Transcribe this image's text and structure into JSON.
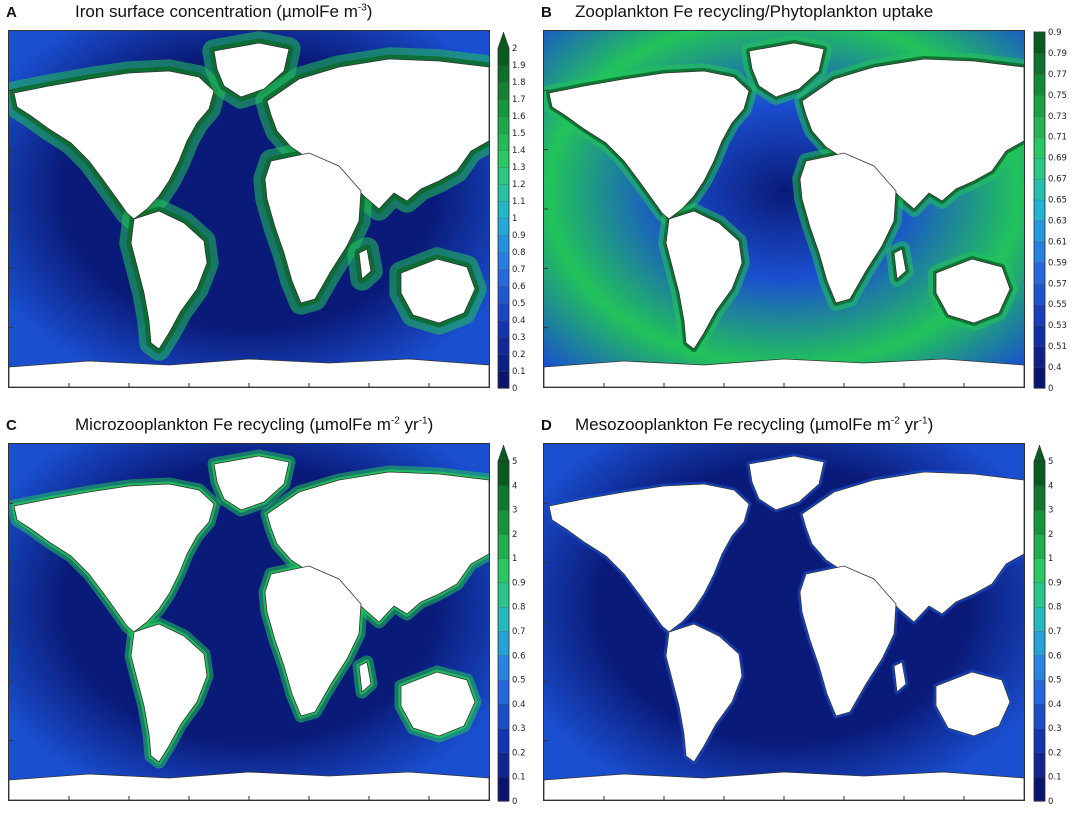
{
  "panels": [
    {
      "letter": "A",
      "title_parts": [
        "Iron surface concentration (µmolFe m",
        "-3",
        ")",
        "",
        ""
      ],
      "colorbar_ticks": [
        "0",
        "0.1",
        "0.2",
        "0.3",
        "0.4",
        "0.5",
        "0.6",
        "0.7",
        "0.8",
        "0.9",
        "1",
        "1.1",
        "1.2",
        "1.3",
        "1.4",
        "1.5",
        "1.6",
        "1.7",
        "1.8",
        "1.9",
        "2"
      ],
      "colorbar_arrow": true
    },
    {
      "letter": "B",
      "title_parts": [
        "Zooplankton Fe recycling/Phytoplankton uptake",
        "",
        "",
        "",
        ""
      ],
      "colorbar_ticks": [
        "0",
        "0.4",
        "0.51",
        "0.53",
        "0.55",
        "0.57",
        "0.59",
        "0.61",
        "0.63",
        "0.65",
        "0.67",
        "0.69",
        "0.71",
        "0.73",
        "0.75",
        "0.77",
        "0.79",
        "0.9"
      ],
      "colorbar_arrow": false
    },
    {
      "letter": "C",
      "title_parts": [
        "Microzooplankton Fe recycling (µmolFe m",
        "-2",
        " yr",
        "-1",
        ")"
      ],
      "colorbar_ticks": [
        "0",
        "0.1",
        "0.2",
        "0.3",
        "0.4",
        "0.5",
        "0.6",
        "0.7",
        "0.8",
        "0.9",
        "1",
        "2",
        "3",
        "4",
        "5"
      ],
      "colorbar_arrow": true
    },
    {
      "letter": "D",
      "title_parts": [
        "Mesozooplankton Fe recycling (µmolFe m",
        "-2",
        " yr",
        "-1",
        ")"
      ],
      "colorbar_ticks": [
        "0",
        "0.1",
        "0.2",
        "0.3",
        "0.4",
        "0.5",
        "0.6",
        "0.7",
        "0.8",
        "0.9",
        "1",
        "2",
        "3",
        "4",
        "5"
      ],
      "colorbar_arrow": true
    }
  ],
  "colors": {
    "ocean_low": "#0a1a78",
    "ocean_mid": "#1a4fd0",
    "ocean_high_a": "#22c35a",
    "ocean_high_b": "#0b6b2a",
    "land": "#ffffff",
    "coast": "#333333"
  }
}
